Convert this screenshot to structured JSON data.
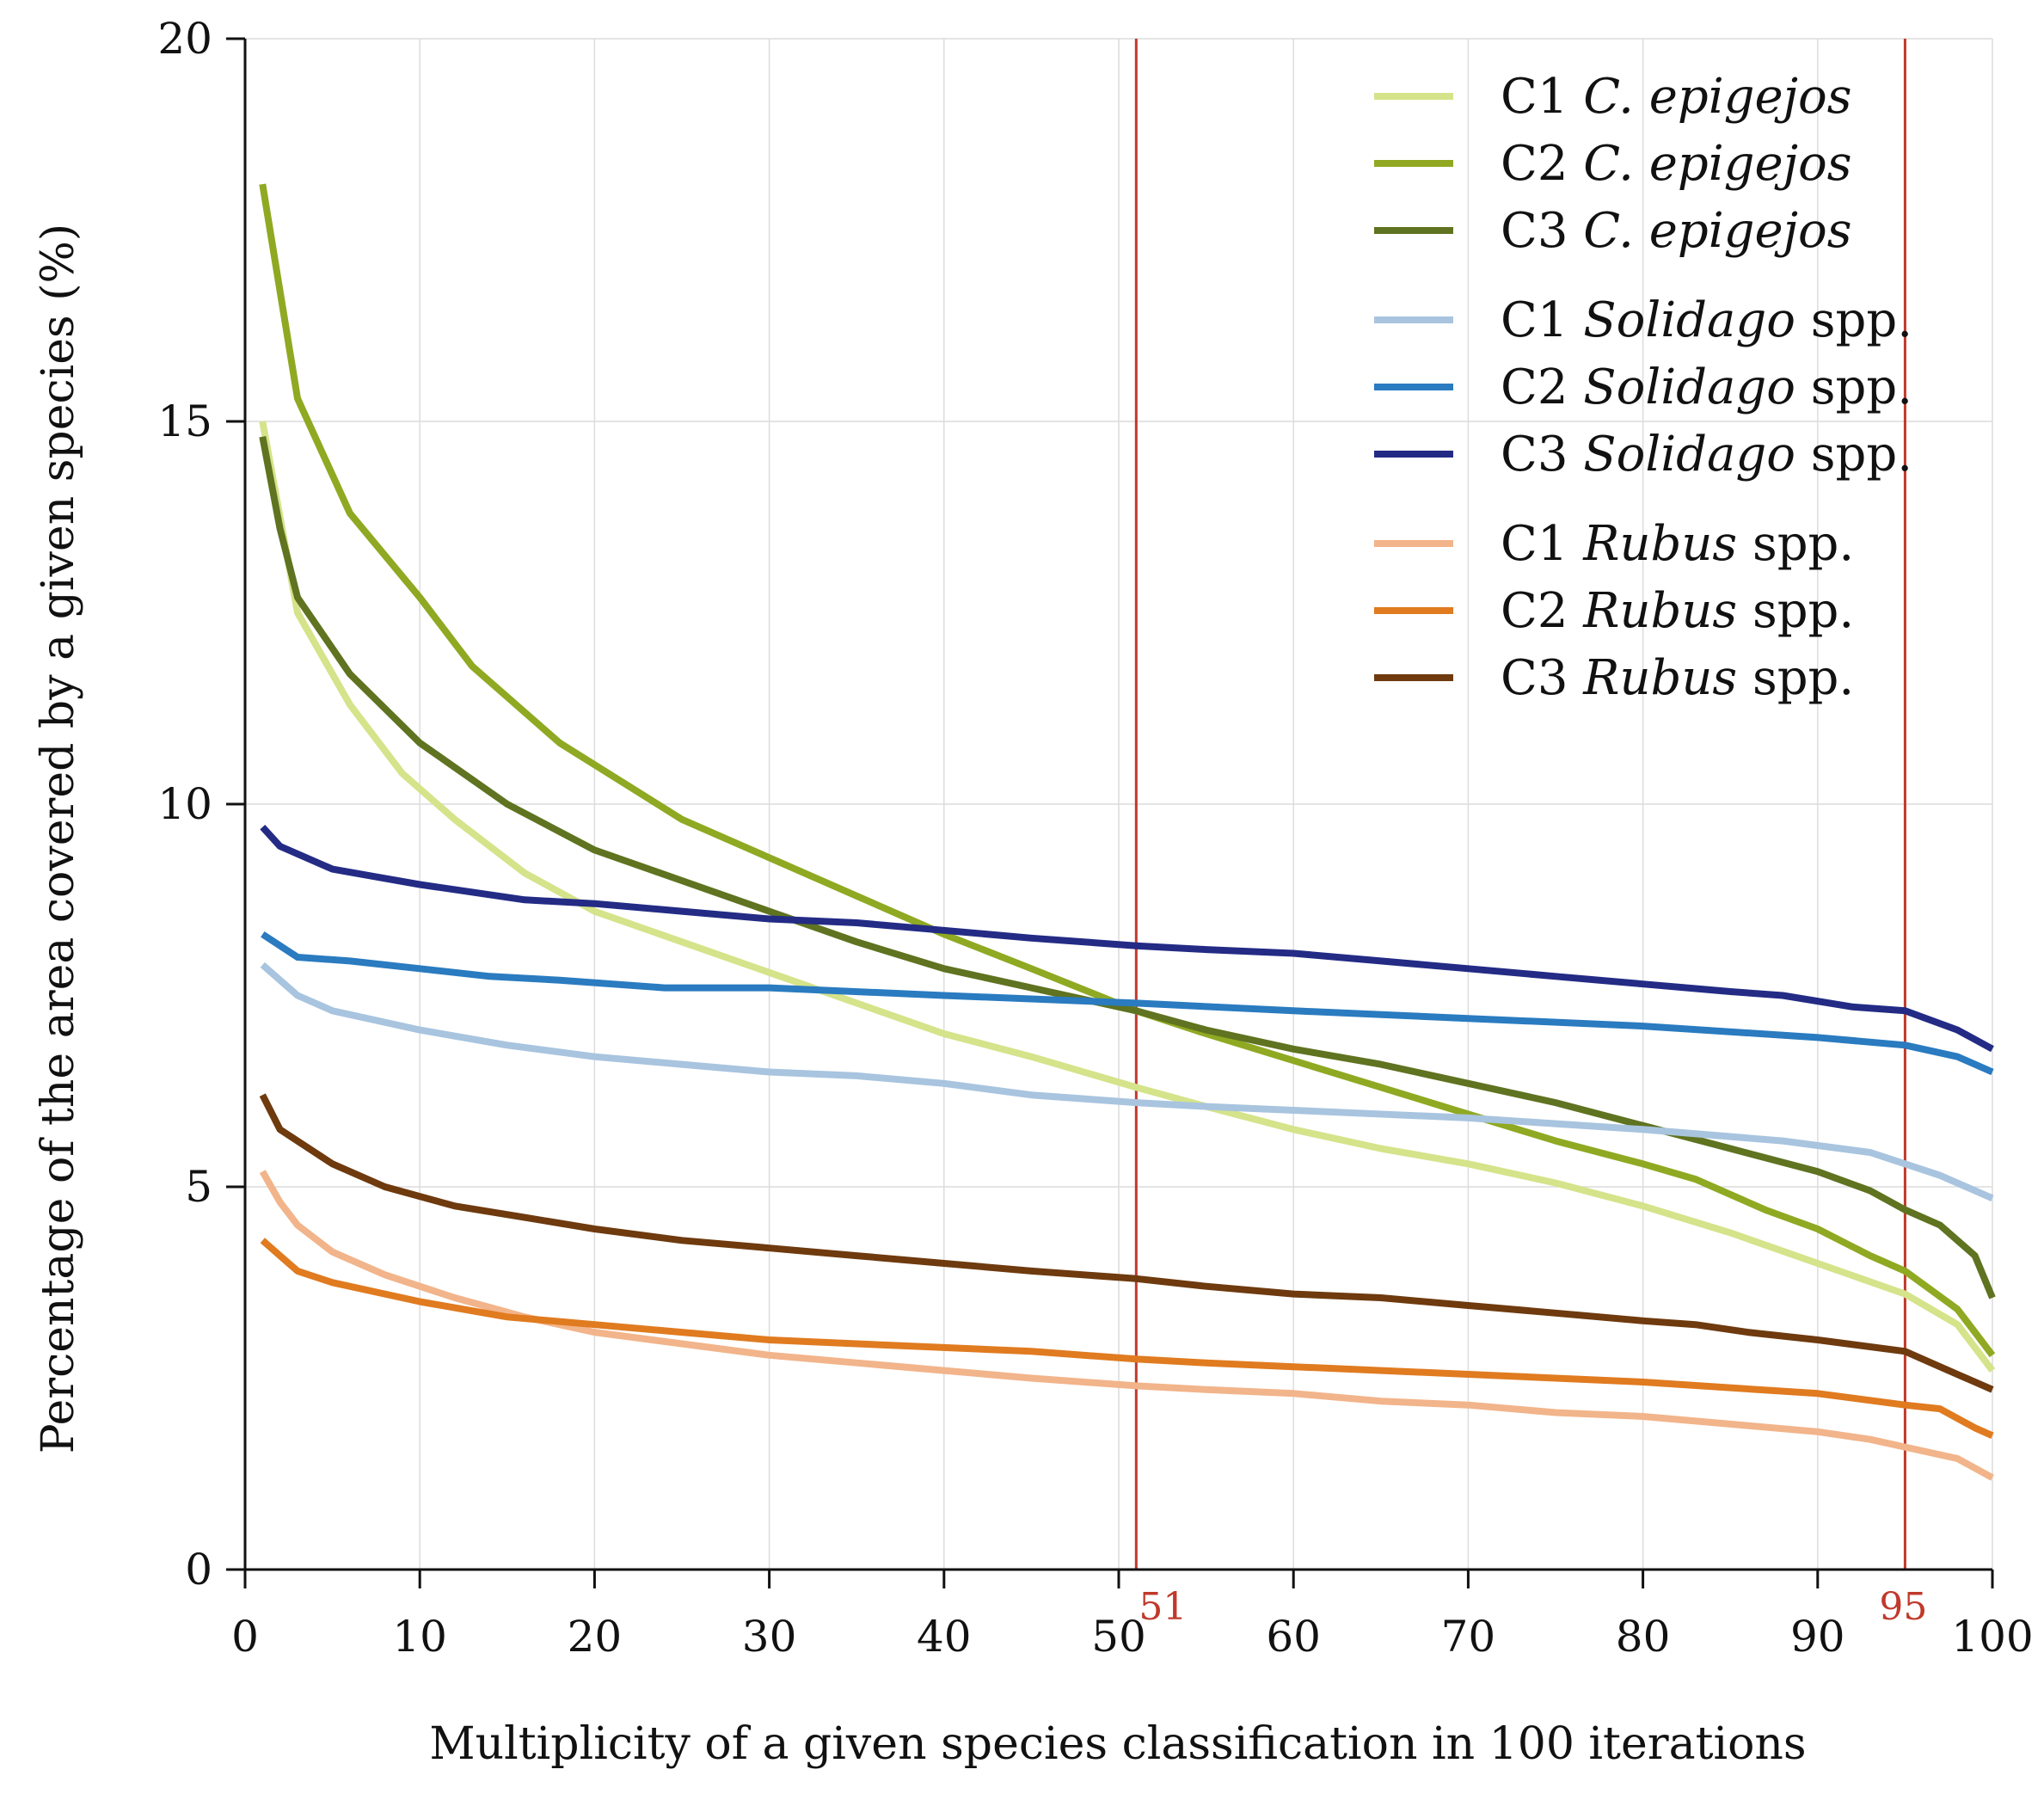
{
  "chart_data": {
    "type": "line",
    "xlabel": "Multiplicity of a given species classification in 100 iterations",
    "ylabel": "Percentage of the area covered by a given species (%)",
    "xlim": [
      0,
      100
    ],
    "ylim": [
      0,
      20
    ],
    "xticks": [
      "0",
      "10",
      "20",
      "30",
      "40",
      "50",
      "60",
      "70",
      "80",
      "90",
      "100"
    ],
    "yticks": [
      "0",
      "5",
      "10",
      "15",
      "20"
    ],
    "grid": true,
    "legend_position": "top-right",
    "markers": [
      {
        "x": 51,
        "label": "51",
        "color": "#c0392b"
      },
      {
        "x": 95,
        "label": "95",
        "color": "#c0392b"
      }
    ],
    "series": [
      {
        "name": "C1 C. epigejos",
        "code": "C1",
        "species": "C. epigejos",
        "italic": "C. epigejos",
        "suffix": "",
        "color": "#d5e38a",
        "x": [
          1,
          3,
          6,
          9,
          12,
          16,
          20,
          25,
          30,
          35,
          40,
          45,
          51,
          55,
          60,
          65,
          70,
          75,
          80,
          85,
          90,
          95,
          98,
          100
        ],
        "y": [
          15.0,
          12.5,
          11.3,
          10.4,
          9.8,
          9.1,
          8.6,
          8.2,
          7.8,
          7.4,
          7.0,
          6.7,
          6.3,
          6.05,
          5.75,
          5.5,
          5.3,
          5.05,
          4.75,
          4.4,
          4.0,
          3.6,
          3.2,
          2.6
        ]
      },
      {
        "name": "C2 C. epigejos",
        "code": "C2",
        "species": "C. epigejos",
        "italic": "C. epigejos",
        "suffix": "",
        "color": "#8fa922",
        "x": [
          1,
          3,
          6,
          10,
          13,
          18,
          25,
          30,
          35,
          40,
          45,
          51,
          55,
          60,
          65,
          70,
          75,
          80,
          83,
          87,
          90,
          93,
          95,
          98,
          100
        ],
        "y": [
          18.1,
          15.3,
          13.8,
          12.7,
          11.8,
          10.8,
          9.8,
          9.3,
          8.8,
          8.3,
          7.85,
          7.3,
          7.0,
          6.65,
          6.3,
          5.95,
          5.6,
          5.3,
          5.1,
          4.7,
          4.45,
          4.1,
          3.9,
          3.4,
          2.8
        ]
      },
      {
        "name": "C3 C. epigejos",
        "code": "C3",
        "species": "C. epigejos",
        "italic": "C. epigejos",
        "suffix": "",
        "color": "#5f7320",
        "x": [
          1,
          2,
          3,
          6,
          10,
          15,
          20,
          25,
          30,
          35,
          40,
          45,
          51,
          55,
          60,
          65,
          70,
          75,
          80,
          85,
          90,
          93,
          95,
          97,
          99,
          100
        ],
        "y": [
          14.8,
          13.6,
          12.7,
          11.7,
          10.8,
          10.0,
          9.4,
          9.0,
          8.6,
          8.2,
          7.85,
          7.6,
          7.3,
          7.05,
          6.8,
          6.6,
          6.35,
          6.1,
          5.8,
          5.5,
          5.2,
          4.95,
          4.7,
          4.5,
          4.1,
          3.55
        ]
      },
      {
        "name": "C1 Solidago spp.",
        "code": "C1",
        "species": "Solidago spp.",
        "italic": "Solidago",
        "suffix": " spp.",
        "color": "#a8c4df",
        "x": [
          1,
          3,
          5,
          10,
          15,
          20,
          25,
          30,
          35,
          40,
          45,
          51,
          55,
          60,
          70,
          80,
          88,
          93,
          95,
          97,
          100
        ],
        "y": [
          7.9,
          7.5,
          7.3,
          7.05,
          6.85,
          6.7,
          6.6,
          6.5,
          6.45,
          6.35,
          6.2,
          6.1,
          6.05,
          6.0,
          5.9,
          5.75,
          5.6,
          5.45,
          5.3,
          5.15,
          4.85
        ]
      },
      {
        "name": "C2 Solidago spp.",
        "code": "C2",
        "species": "Solidago spp.",
        "italic": "Solidago",
        "suffix": " spp.",
        "color": "#2a7bc0",
        "x": [
          1,
          3,
          6,
          10,
          14,
          18,
          24,
          30,
          40,
          51,
          60,
          70,
          80,
          90,
          95,
          98,
          100
        ],
        "y": [
          8.3,
          8.0,
          7.95,
          7.85,
          7.75,
          7.7,
          7.6,
          7.6,
          7.5,
          7.4,
          7.3,
          7.2,
          7.1,
          6.95,
          6.85,
          6.7,
          6.5
        ]
      },
      {
        "name": "C3 Solidago spp.",
        "code": "C3",
        "species": "Solidago spp.",
        "italic": "Solidago",
        "suffix": " spp.",
        "color": "#232b85",
        "x": [
          1,
          2,
          5,
          10,
          16,
          20,
          25,
          30,
          35,
          40,
          45,
          51,
          55,
          60,
          65,
          70,
          75,
          80,
          85,
          88,
          92,
          95,
          98,
          100
        ],
        "y": [
          9.7,
          9.45,
          9.15,
          8.95,
          8.75,
          8.7,
          8.6,
          8.5,
          8.45,
          8.35,
          8.25,
          8.15,
          8.1,
          8.05,
          7.95,
          7.85,
          7.75,
          7.65,
          7.55,
          7.5,
          7.35,
          7.3,
          7.05,
          6.8
        ]
      },
      {
        "name": "C1 Rubus spp.",
        "code": "C1",
        "species": "Rubus spp.",
        "italic": "Rubus",
        "suffix": " spp.",
        "color": "#f2b48a",
        "x": [
          1,
          2,
          3,
          5,
          8,
          12,
          16,
          20,
          25,
          30,
          35,
          40,
          45,
          51,
          55,
          60,
          65,
          70,
          75,
          80,
          85,
          90,
          93,
          95,
          98,
          100
        ],
        "y": [
          5.2,
          4.8,
          4.5,
          4.15,
          3.85,
          3.55,
          3.3,
          3.1,
          2.95,
          2.8,
          2.7,
          2.6,
          2.5,
          2.4,
          2.35,
          2.3,
          2.2,
          2.15,
          2.05,
          2.0,
          1.9,
          1.8,
          1.7,
          1.6,
          1.45,
          1.2
        ]
      },
      {
        "name": "C2 Rubus spp.",
        "code": "C2",
        "species": "Rubus spp.",
        "italic": "Rubus",
        "suffix": " spp.",
        "color": "#e07b20",
        "x": [
          1,
          2,
          3,
          5,
          8,
          10,
          15,
          20,
          25,
          30,
          35,
          40,
          45,
          51,
          55,
          60,
          70,
          80,
          90,
          95,
          97,
          99,
          100
        ],
        "y": [
          4.3,
          4.1,
          3.9,
          3.75,
          3.6,
          3.5,
          3.3,
          3.2,
          3.1,
          3.0,
          2.95,
          2.9,
          2.85,
          2.75,
          2.7,
          2.65,
          2.55,
          2.45,
          2.3,
          2.15,
          2.1,
          1.85,
          1.75
        ]
      },
      {
        "name": "C3 Rubus spp.",
        "code": "C3",
        "species": "Rubus spp.",
        "italic": "Rubus",
        "suffix": " spp.",
        "color": "#6e3a0e",
        "x": [
          1,
          2,
          5,
          8,
          12,
          16,
          20,
          25,
          30,
          35,
          40,
          45,
          51,
          55,
          60,
          65,
          70,
          75,
          80,
          83,
          86,
          90,
          95,
          97,
          100
        ],
        "y": [
          6.2,
          5.75,
          5.3,
          5.0,
          4.75,
          4.6,
          4.45,
          4.3,
          4.2,
          4.1,
          4.0,
          3.9,
          3.8,
          3.7,
          3.6,
          3.55,
          3.45,
          3.35,
          3.25,
          3.2,
          3.1,
          3.0,
          2.85,
          2.65,
          2.35
        ]
      }
    ]
  }
}
